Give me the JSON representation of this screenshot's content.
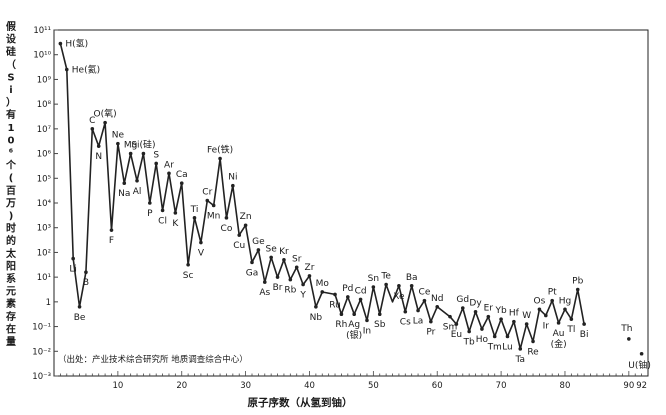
{
  "chart_data": {
    "type": "line",
    "ylabel": "假设硅（Si）有10⁶个(百万)时的太阳系元素存在量",
    "xlabel": "原子序数（从氢到铀）",
    "yscale": "log",
    "ylim_exp": [
      -3,
      11
    ],
    "xlim": [
      0,
      93
    ],
    "x_ticks": [
      "10",
      "20",
      "30",
      "40",
      "50",
      "60",
      "70",
      "80",
      "90",
      "92"
    ],
    "x_tick_values": [
      10,
      20,
      30,
      40,
      50,
      60,
      70,
      80,
      90,
      92
    ],
    "y_ticks": [
      "10⁻³",
      "10⁻²",
      "10⁻¹",
      "1",
      "10¹",
      "10²",
      "10³",
      "10⁴",
      "10⁵",
      "10⁶",
      "10⁷",
      "10⁸",
      "10⁹",
      "10¹⁰",
      "10¹¹"
    ],
    "y_tick_exps": [
      -3,
      -2,
      -1,
      0,
      1,
      2,
      3,
      4,
      5,
      6,
      7,
      8,
      9,
      10,
      11
    ],
    "source_note": "（出处：产业技术综合研究所 地质调查综合中心）",
    "series": [
      {
        "x": [
          1,
          2,
          3,
          4,
          5,
          6,
          7,
          8,
          9,
          10,
          11,
          12,
          13,
          14,
          15,
          16,
          17,
          18,
          19,
          20,
          21,
          22,
          23,
          24,
          25,
          26,
          27,
          28,
          29,
          30,
          31,
          32,
          33,
          34,
          35,
          36,
          37,
          38,
          39,
          40,
          41,
          42,
          44,
          45,
          46,
          47,
          48,
          49,
          50,
          51,
          52,
          53,
          54,
          55,
          56,
          57,
          58,
          59,
          60,
          62,
          63,
          64,
          65,
          66,
          67,
          68,
          69,
          70,
          71,
          72,
          73,
          74,
          75,
          76,
          77,
          78,
          79,
          80,
          81,
          82,
          83
        ],
        "log_y": [
          10.45,
          9.4,
          1.75,
          -0.2,
          1.2,
          7.0,
          6.3,
          7.25,
          2.9,
          6.4,
          4.8,
          6.0,
          4.9,
          6.0,
          4.0,
          5.6,
          3.7,
          5.2,
          3.6,
          4.8,
          1.5,
          3.4,
          2.4,
          4.1,
          3.9,
          5.8,
          3.4,
          4.7,
          2.7,
          3.1,
          1.6,
          2.1,
          0.8,
          1.8,
          1.0,
          1.7,
          0.9,
          1.4,
          0.7,
          1.05,
          -0.2,
          0.4,
          0.3,
          -0.5,
          0.2,
          -0.5,
          0.1,
          -0.75,
          0.6,
          -0.5,
          0.7,
          0.0,
          0.65,
          -0.4,
          0.65,
          -0.35,
          0.05,
          -0.8,
          -0.2,
          -0.6,
          -0.9,
          -0.25,
          -1.2,
          -0.4,
          -1.1,
          -0.6,
          -1.4,
          -0.7,
          -1.4,
          -0.8,
          -1.9,
          -0.9,
          -1.6,
          -0.3,
          -0.55,
          0.05,
          -0.85,
          -0.3,
          -0.7,
          0.5,
          -0.9
        ]
      }
    ],
    "elements": [
      {
        "label": "H(氢)",
        "x": 1,
        "y": 10.45
      },
      {
        "label": "He(氦)",
        "x": 2,
        "y": 9.4
      },
      {
        "label": "Li",
        "x": 3,
        "y": 1.75
      },
      {
        "label": "Be",
        "x": 4,
        "y": -0.2
      },
      {
        "label": "B",
        "x": 5,
        "y": 1.2
      },
      {
        "label": "C",
        "x": 6,
        "y": 7.0
      },
      {
        "label": "N",
        "x": 7,
        "y": 6.3
      },
      {
        "label": "O(氧)",
        "x": 8,
        "y": 7.25
      },
      {
        "label": "F",
        "x": 9,
        "y": 2.9
      },
      {
        "label": "Ne",
        "x": 10,
        "y": 6.4
      },
      {
        "label": "Na",
        "x": 11,
        "y": 4.8
      },
      {
        "label": "Mg",
        "x": 12,
        "y": 6.0
      },
      {
        "label": "Al",
        "x": 13,
        "y": 4.9
      },
      {
        "label": "Si(硅)",
        "x": 14,
        "y": 6.0
      },
      {
        "label": "P",
        "x": 15,
        "y": 4.0
      },
      {
        "label": "S",
        "x": 16,
        "y": 5.6
      },
      {
        "label": "Cl",
        "x": 17,
        "y": 3.7
      },
      {
        "label": "Ar",
        "x": 18,
        "y": 5.2
      },
      {
        "label": "K",
        "x": 19,
        "y": 3.6
      },
      {
        "label": "Ca",
        "x": 20,
        "y": 4.8
      },
      {
        "label": "Sc",
        "x": 21,
        "y": 1.5
      },
      {
        "label": "Ti",
        "x": 22,
        "y": 3.4
      },
      {
        "label": "V",
        "x": 23,
        "y": 2.4
      },
      {
        "label": "Cr",
        "x": 24,
        "y": 4.1
      },
      {
        "label": "Mn",
        "x": 25,
        "y": 3.9
      },
      {
        "label": "Fe(铁)",
        "x": 26,
        "y": 5.8
      },
      {
        "label": "Co",
        "x": 27,
        "y": 3.4
      },
      {
        "label": "Ni",
        "x": 28,
        "y": 4.7
      },
      {
        "label": "Cu",
        "x": 29,
        "y": 2.7
      },
      {
        "label": "Zn",
        "x": 30,
        "y": 3.1
      },
      {
        "label": "Ga",
        "x": 31,
        "y": 1.6
      },
      {
        "label": "Ge",
        "x": 32,
        "y": 2.1
      },
      {
        "label": "As",
        "x": 33,
        "y": 0.8
      },
      {
        "label": "Se",
        "x": 34,
        "y": 1.8
      },
      {
        "label": "Br",
        "x": 35,
        "y": 1.0
      },
      {
        "label": "Kr",
        "x": 36,
        "y": 1.7
      },
      {
        "label": "Rb",
        "x": 37,
        "y": 0.9
      },
      {
        "label": "Sr",
        "x": 38,
        "y": 1.4
      },
      {
        "label": "Y",
        "x": 39,
        "y": 0.7
      },
      {
        "label": "Zr",
        "x": 40,
        "y": 1.05
      },
      {
        "label": "Nb",
        "x": 41,
        "y": -0.2
      },
      {
        "label": "Mo",
        "x": 42,
        "y": 0.4
      },
      {
        "label": "Ru",
        "x": 44,
        "y": 0.3
      },
      {
        "label": "Rh",
        "x": 45,
        "y": -0.5
      },
      {
        "label": "Pd",
        "x": 46,
        "y": 0.2
      },
      {
        "label": "Ag",
        "x": 47,
        "y": -0.5
      },
      {
        "label": "Cd",
        "x": 48,
        "y": 0.1
      },
      {
        "label": "In",
        "x": 49,
        "y": -0.75
      },
      {
        "label": "Sn",
        "x": 50,
        "y": 0.6
      },
      {
        "label": "Sb",
        "x": 51,
        "y": -0.5
      },
      {
        "label": "Te",
        "x": 52,
        "y": 0.7
      },
      {
        "label": "Xe",
        "x": 54,
        "y": 0.65
      },
      {
        "label": "Cs",
        "x": 55,
        "y": -0.4
      },
      {
        "label": "Ba",
        "x": 56,
        "y": 0.65
      },
      {
        "label": "La",
        "x": 57,
        "y": -0.35
      },
      {
        "label": "Ce",
        "x": 58,
        "y": 0.05
      },
      {
        "label": "Pr",
        "x": 59,
        "y": -0.8
      },
      {
        "label": "Nd",
        "x": 60,
        "y": -0.2
      },
      {
        "label": "Sm",
        "x": 62,
        "y": -0.6
      },
      {
        "label": "Eu",
        "x": 63,
        "y": -0.9
      },
      {
        "label": "Gd",
        "x": 64,
        "y": -0.25
      },
      {
        "label": "Tb",
        "x": 65,
        "y": -1.2
      },
      {
        "label": "Dy",
        "x": 66,
        "y": -0.4
      },
      {
        "label": "Ho",
        "x": 67,
        "y": -1.1
      },
      {
        "label": "Er",
        "x": 68,
        "y": -0.6
      },
      {
        "label": "Tm",
        "x": 69,
        "y": -1.4
      },
      {
        "label": "Yb",
        "x": 70,
        "y": -0.7
      },
      {
        "label": "Lu",
        "x": 71,
        "y": -1.4
      },
      {
        "label": "Hf",
        "x": 72,
        "y": -0.8
      },
      {
        "label": "Ta",
        "x": 73,
        "y": -1.9
      },
      {
        "label": "W",
        "x": 74,
        "y": -0.9
      },
      {
        "label": "Re",
        "x": 75,
        "y": -1.6
      },
      {
        "label": "Os",
        "x": 76,
        "y": -0.3
      },
      {
        "label": "Ir",
        "x": 77,
        "y": -0.55
      },
      {
        "label": "Pt",
        "x": 78,
        "y": 0.05
      },
      {
        "label": "Au",
        "x": 79,
        "y": -0.85
      },
      {
        "label": "Hg",
        "x": 80,
        "y": -0.3
      },
      {
        "label": "Tl",
        "x": 81,
        "y": -0.7
      },
      {
        "label": "Pb",
        "x": 82,
        "y": 0.5
      },
      {
        "label": "Bi",
        "x": 83,
        "y": -0.9
      },
      {
        "label": "Th",
        "x": 90,
        "y": -1.5
      },
      {
        "label": "U(铀)",
        "x": 92,
        "y": -2.1
      }
    ],
    "sub_labels": [
      {
        "label": "(银)",
        "x": 47,
        "y": -0.5
      },
      {
        "label": "(金)",
        "x": 79,
        "y": -0.85
      }
    ]
  },
  "colors": {
    "line": "#222222",
    "axis": "#222222",
    "grid_tick": "#444444"
  }
}
